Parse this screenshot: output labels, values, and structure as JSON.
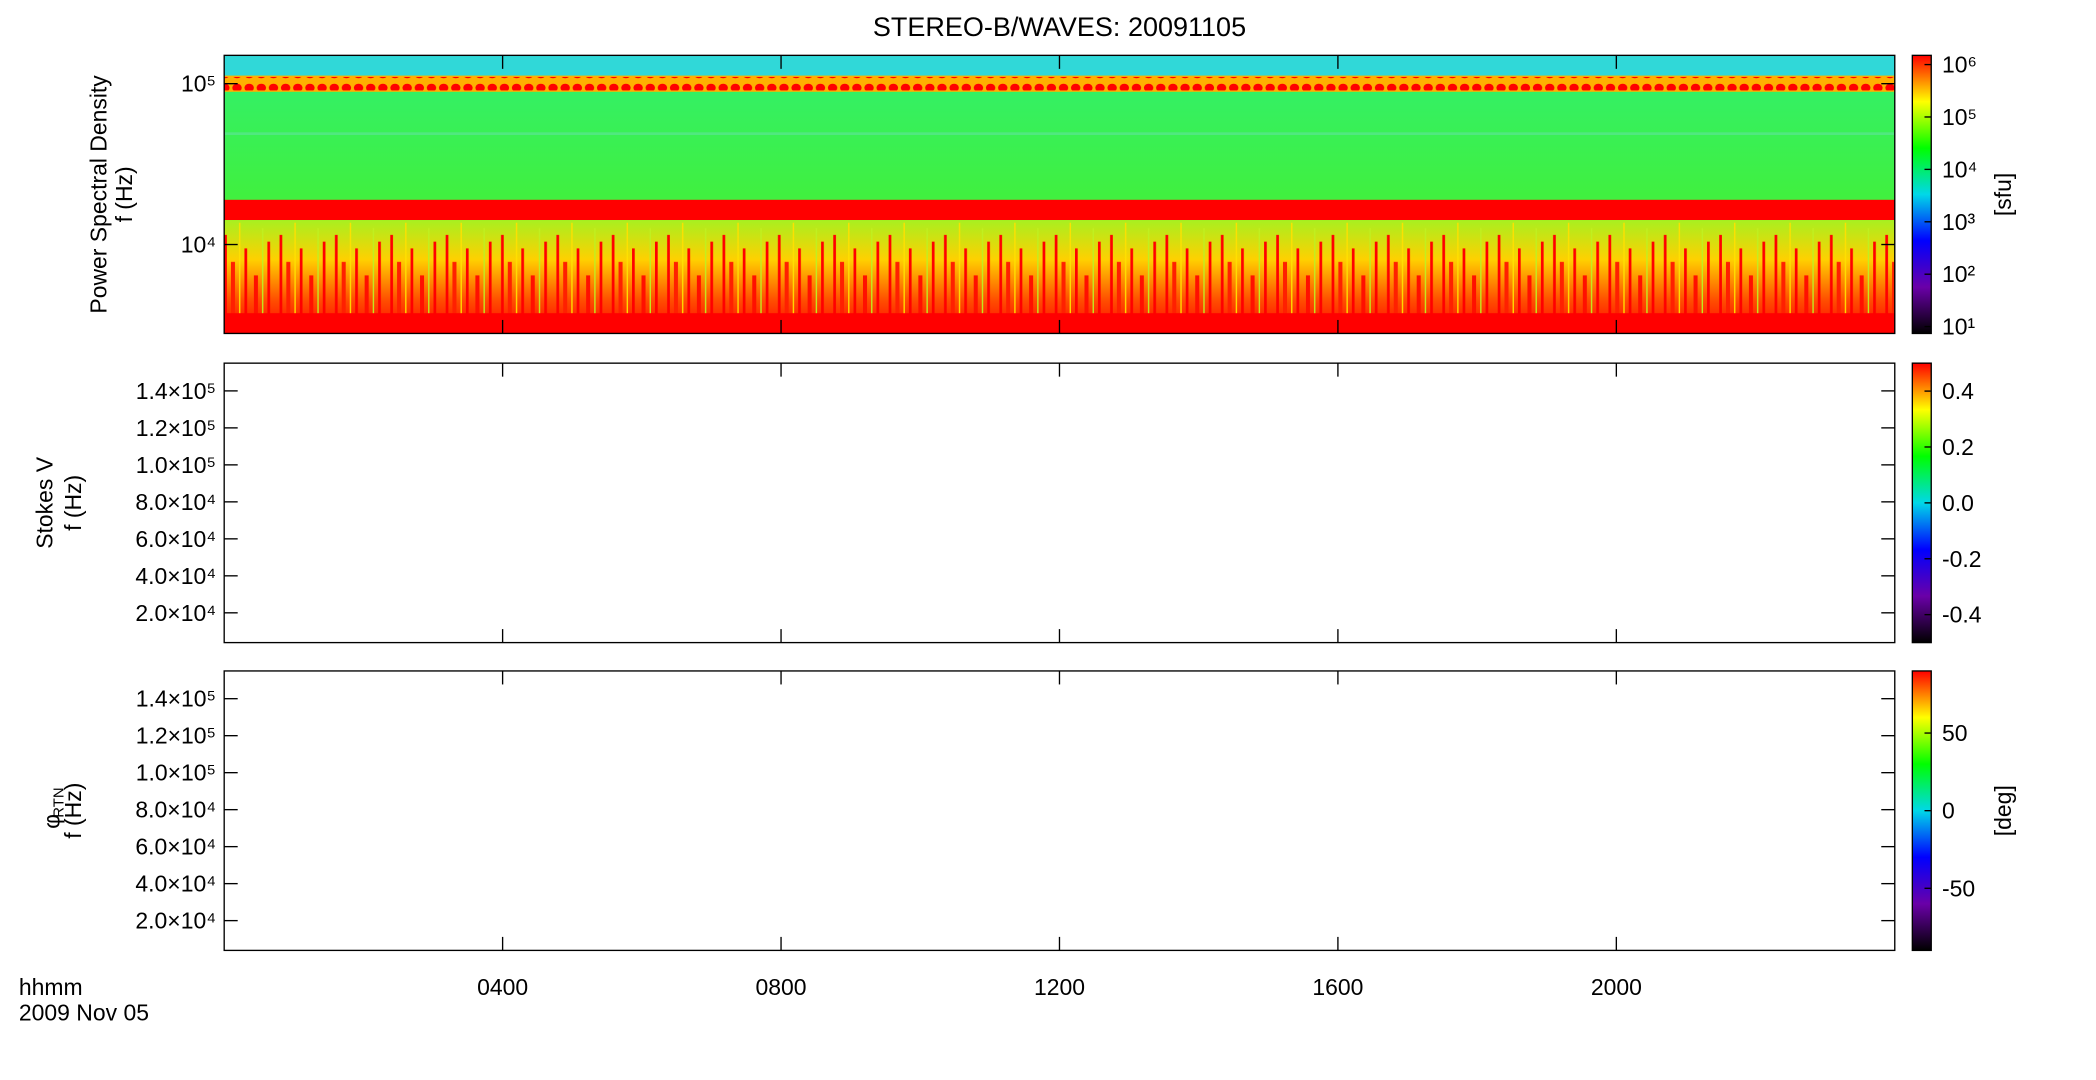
{
  "chart_data": [
    {
      "type": "spectrogram",
      "title": "STEREO-B/WAVES: 20091105",
      "ylabel": [
        "Power Spectral Density",
        "f (Hz)"
      ],
      "ylog": true,
      "ylim": [
        2800,
        150000
      ],
      "yticks": [
        {
          "value": 10000,
          "label": "10⁴"
        },
        {
          "value": 100000,
          "label": "10⁵"
        }
      ],
      "xlim": [
        0,
        24
      ],
      "colorbar": {
        "log": true,
        "clim": [
          7.4,
          1500000
        ],
        "unit": "[sfu]",
        "colormap": [
          "#000000",
          "#6a00a8",
          "#0000ff",
          "#00d8e8",
          "#00ff00",
          "#ffff00",
          "#ff0000"
        ],
        "ticks": [
          {
            "value": 10,
            "label": "10¹"
          },
          {
            "value": 100,
            "label": "10²"
          },
          {
            "value": 1000,
            "label": "10³"
          },
          {
            "value": 10000,
            "label": "10⁴"
          },
          {
            "value": 100000,
            "label": "10⁵"
          },
          {
            "value": 1000000,
            "label": "10⁶"
          }
        ]
      }
    },
    {
      "type": "spectrogram",
      "ylabel": [
        "Stokes V",
        "f (Hz)"
      ],
      "ylog": false,
      "ylim": [
        3900,
        155000
      ],
      "yticks": [
        {
          "value": 20000,
          "label": "2.0×10⁴"
        },
        {
          "value": 40000,
          "label": "4.0×10⁴"
        },
        {
          "value": 60000,
          "label": "6.0×10⁴"
        },
        {
          "value": 80000,
          "label": "8.0×10⁴"
        },
        {
          "value": 100000,
          "label": "1.0×10⁵"
        },
        {
          "value": 120000,
          "label": "1.2×10⁵"
        },
        {
          "value": 140000,
          "label": "1.4×10⁵"
        }
      ],
      "xlim": [
        0,
        24
      ],
      "colorbar": {
        "log": false,
        "clim": [
          -0.5,
          0.5
        ],
        "colormap": [
          "#000000",
          "#6a00a8",
          "#0000ff",
          "#00d8e8",
          "#00ff00",
          "#ffff00",
          "#ff0000"
        ],
        "ticks": [
          -0.4,
          -0.2,
          {
            "value": 0,
            "label": "0.0"
          },
          0.2,
          0.4
        ]
      }
    },
    {
      "type": "spectrogram",
      "ylabel_symbol": "φ",
      "ylabel_sub": "RTN",
      "ylabel": [
        "f (Hz)"
      ],
      "ylog": false,
      "ylim": [
        3900,
        155000
      ],
      "yticks": [
        {
          "value": 20000,
          "label": "2.0×10⁴"
        },
        {
          "value": 40000,
          "label": "4.0×10⁴"
        },
        {
          "value": 60000,
          "label": "6.0×10⁴"
        },
        {
          "value": 80000,
          "label": "8.0×10⁴"
        },
        {
          "value": 100000,
          "label": "1.0×10⁵"
        },
        {
          "value": 120000,
          "label": "1.2×10⁵"
        },
        {
          "value": 140000,
          "label": "1.4×10⁵"
        }
      ],
      "xlim": [
        0,
        24
      ],
      "xticks": [
        {
          "value": 4,
          "label": "0400"
        },
        {
          "value": 8,
          "label": "0800"
        },
        {
          "value": 12,
          "label": "1200"
        },
        {
          "value": 16,
          "label": "1600"
        },
        {
          "value": 20,
          "label": "2000"
        }
      ],
      "xlabel": "hhmm",
      "xlabel_date": "2009 Nov 05",
      "colorbar": {
        "log": false,
        "clim": [
          -90,
          90
        ],
        "unit": "[deg]",
        "colormap": [
          "#000000",
          "#6a00a8",
          "#0000ff",
          "#00d8e8",
          "#00ff00",
          "#ffff00",
          "#ff0000"
        ],
        "ticks": [
          -50,
          0,
          50
        ]
      }
    }
  ]
}
